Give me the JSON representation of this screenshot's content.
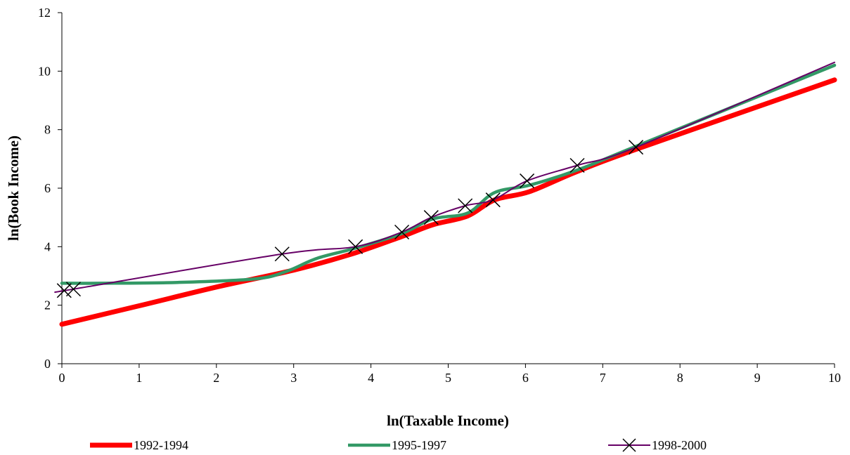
{
  "chart_data": {
    "type": "line",
    "xlabel": "ln(Taxable Income)",
    "ylabel": "ln(Book Income)",
    "xlim": [
      0,
      10
    ],
    "ylim": [
      0,
      12
    ],
    "x_ticks": [
      "0",
      "1",
      "2",
      "3",
      "4",
      "5",
      "6",
      "7",
      "8",
      "9",
      "10"
    ],
    "y_ticks": [
      "0",
      "2",
      "4",
      "6",
      "8",
      "10",
      "12"
    ],
    "grid": false,
    "legend_position": "bottom",
    "series": [
      {
        "name": "1992-1994",
        "color": "#ff0000",
        "marker": "none",
        "points": [
          [
            0,
            1.35
          ],
          [
            1,
            1.98
          ],
          [
            2,
            2.62
          ],
          [
            3,
            3.2
          ],
          [
            3.75,
            3.75
          ],
          [
            4.4,
            4.35
          ],
          [
            4.8,
            4.75
          ],
          [
            5.25,
            5.05
          ],
          [
            5.6,
            5.6
          ],
          [
            6.05,
            5.88
          ],
          [
            6.65,
            6.55
          ],
          [
            7.4,
            7.3
          ],
          [
            10,
            9.7
          ]
        ]
      },
      {
        "name": "1995-1997",
        "color": "#339966",
        "marker": "none",
        "points": [
          [
            0,
            2.75
          ],
          [
            0.5,
            2.75
          ],
          [
            1.5,
            2.78
          ],
          [
            2.5,
            2.9
          ],
          [
            2.9,
            3.15
          ],
          [
            3.3,
            3.6
          ],
          [
            3.8,
            3.95
          ],
          [
            4.4,
            4.45
          ],
          [
            4.8,
            4.95
          ],
          [
            5.25,
            5.15
          ],
          [
            5.6,
            5.85
          ],
          [
            6.05,
            6.1
          ],
          [
            6.65,
            6.6
          ],
          [
            7.4,
            7.4
          ],
          [
            10,
            10.2
          ]
        ]
      },
      {
        "name": "1998-2000",
        "color": "#660066",
        "marker": "x",
        "points": [
          [
            0.03,
            2.5
          ],
          [
            0.15,
            2.55
          ],
          [
            2.85,
            3.75
          ],
          [
            3.8,
            4.0
          ],
          [
            4.4,
            4.5
          ],
          [
            4.78,
            5.0
          ],
          [
            5.22,
            5.4
          ],
          [
            5.58,
            5.6
          ],
          [
            6.02,
            6.25
          ],
          [
            6.67,
            6.78
          ],
          [
            7.43,
            7.4
          ],
          [
            10,
            10.3
          ]
        ],
        "markers_shown": [
          [
            0.03,
            2.5
          ],
          [
            0.15,
            2.55
          ],
          [
            2.85,
            3.75
          ],
          [
            3.8,
            4.0
          ],
          [
            4.4,
            4.5
          ],
          [
            4.78,
            5.0
          ],
          [
            5.22,
            5.4
          ],
          [
            5.58,
            5.6
          ],
          [
            6.02,
            6.25
          ],
          [
            6.67,
            6.78
          ],
          [
            7.43,
            7.4
          ]
        ]
      }
    ]
  }
}
